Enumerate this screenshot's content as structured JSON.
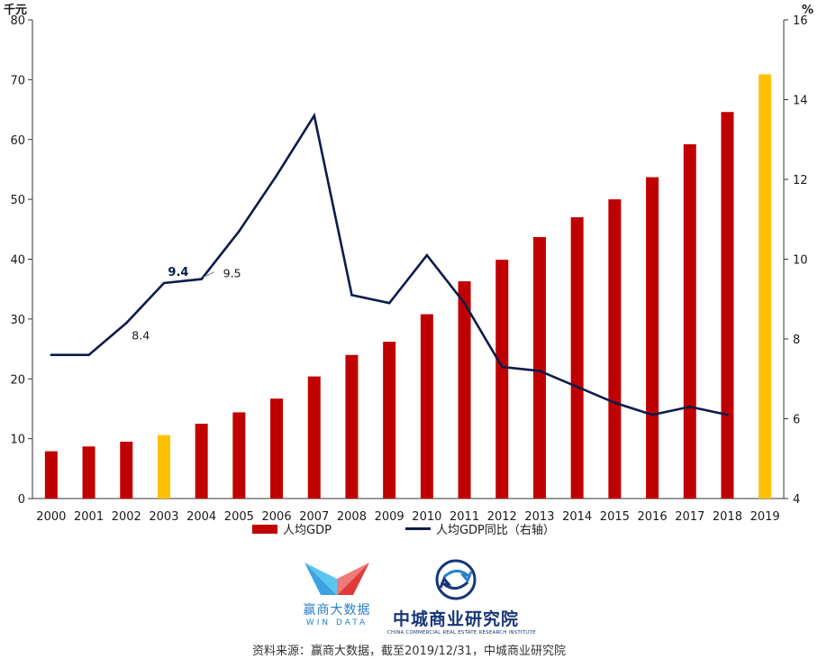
{
  "chart_data": {
    "type": "bar+line",
    "categories": [
      "2000",
      "2001",
      "2002",
      "2003",
      "2004",
      "2005",
      "2006",
      "2007",
      "2008",
      "2009",
      "2010",
      "2011",
      "2012",
      "2013",
      "2014",
      "2015",
      "2016",
      "2017",
      "2018",
      "2019"
    ],
    "series": [
      {
        "name": "人均GDP",
        "type": "bar",
        "axis": "left",
        "values": [
          7.9,
          8.7,
          9.5,
          10.6,
          12.5,
          14.4,
          16.7,
          20.4,
          24.0,
          26.2,
          30.8,
          36.3,
          39.9,
          43.7,
          47.0,
          50.0,
          53.7,
          59.2,
          64.6,
          70.9
        ],
        "color": "#c00000",
        "highlight_color": "#ffc000",
        "highlight_categories": [
          "2003",
          "2019"
        ]
      },
      {
        "name": "人均GDP同比（右轴）",
        "type": "line",
        "axis": "right",
        "values": [
          7.6,
          7.6,
          8.4,
          9.4,
          9.5,
          10.7,
          12.1,
          13.6,
          9.1,
          8.9,
          10.1,
          8.9,
          7.3,
          7.2,
          6.8,
          6.4,
          6.1,
          6.3,
          6.1,
          null
        ],
        "color": "#0d1b4c"
      }
    ],
    "y_left": {
      "unit": "千元",
      "lim": [
        0,
        80
      ],
      "ticks": [
        "0",
        "10",
        "20",
        "30",
        "40",
        "50",
        "60",
        "70",
        "80"
      ]
    },
    "y_right": {
      "unit": "%",
      "lim": [
        4,
        16
      ],
      "ticks": [
        "4",
        "6",
        "8",
        "10",
        "12",
        "14",
        "16"
      ]
    },
    "annotations": [
      {
        "text": "8.4",
        "category": "2002",
        "value": 8.4,
        "bold": false
      },
      {
        "text": "9.4",
        "category": "2003",
        "value": 9.4,
        "bold": true
      },
      {
        "text": "9.5",
        "category": "2004",
        "value": 9.5,
        "bold": false
      }
    ],
    "legend_position": "bottom",
    "grid": false
  },
  "legend": {
    "bar_label": "人均GDP",
    "line_label": "人均GDP同比（右轴）"
  },
  "logos": {
    "win_cn": "赢商大数据",
    "win_en": "WIN DATA",
    "cc_cn": "中城商业研究院",
    "cc_en": "CHINA COMMERCIAL REAL ESTATE RESEARCH INSTITUTE"
  },
  "source": "资料来源：赢商大数据，截至2019/12/31，中城商业研究院"
}
